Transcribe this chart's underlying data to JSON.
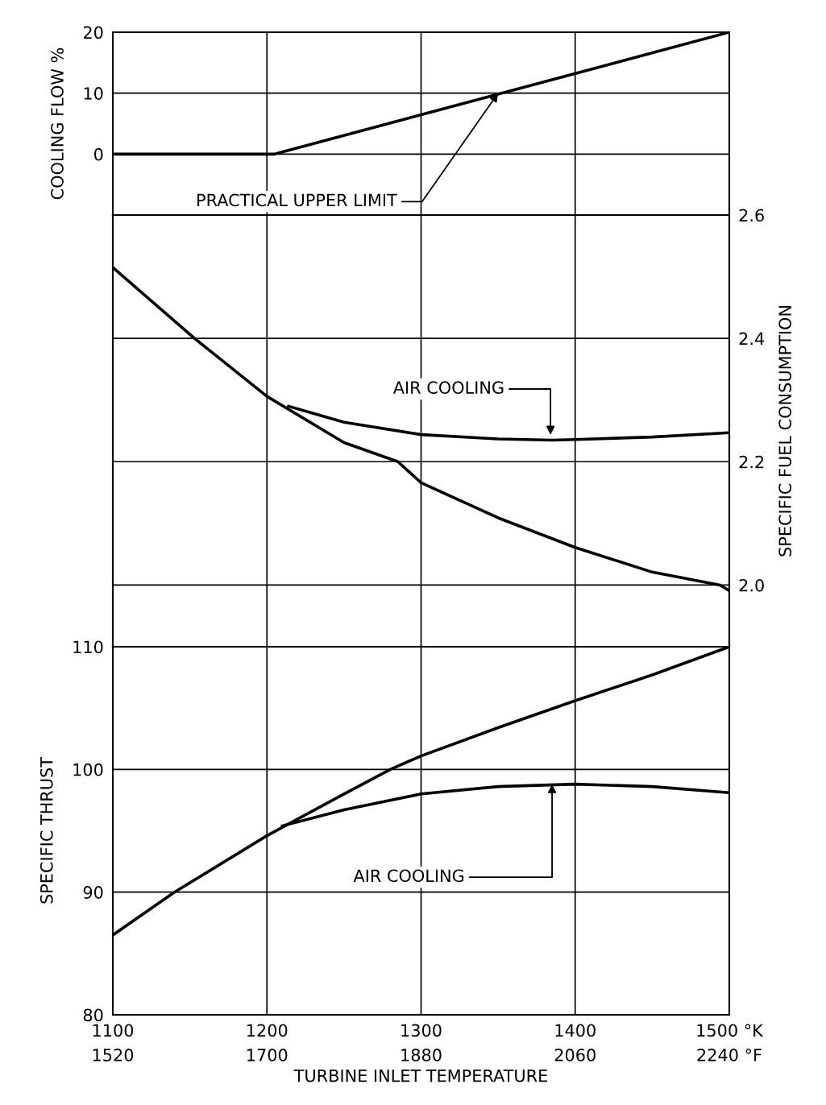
{
  "chart_data": [
    {
      "type": "line",
      "ylabel": "COOLING FLOW %",
      "xlim": [
        1100,
        1500
      ],
      "xticks": [
        1100,
        1200,
        1300,
        1400,
        1500
      ],
      "ylim": [
        -10,
        20
      ],
      "yticks": [
        0,
        10,
        20
      ],
      "grid": true,
      "tick_labels": "y",
      "line_style": "solid",
      "series": [
        {
          "color": "#000000",
          "x": [
            1100,
            1205,
            1500
          ],
          "values": [
            0,
            0,
            20
          ]
        }
      ],
      "annotations": [
        {
          "text": "PRACTICAL UPPER LIMIT",
          "x": 1350,
          "y": 10
        }
      ]
    },
    {
      "type": "line",
      "y2label": "SPECIFIC FUEL CONSUMPTION",
      "xlim": [
        1100,
        1500
      ],
      "xticks": [
        1100,
        1200,
        1300,
        1400,
        1500
      ],
      "y2lim": [
        1.9,
        2.6
      ],
      "y2ticks": [
        {
          "value": 2.0,
          "label": "2.0"
        },
        2.2,
        2.4,
        2.6
      ],
      "grid": true,
      "tick_labels": "y",
      "line_style": "solid",
      "series": [
        {
          "color": "#000000",
          "axis": "y2",
          "x": [
            1100,
            1153,
            1200,
            1250,
            1285,
            1300,
            1350,
            1400,
            1450,
            1494,
            1500
          ],
          "values": [
            2.515,
            2.4,
            2.306,
            2.231,
            2.2,
            2.166,
            2.109,
            2.061,
            2.021,
            2.0,
            1.991
          ]
        },
        {
          "color": "#000000",
          "axis": "y2",
          "x": [
            1214,
            1250,
            1300,
            1350,
            1385,
            1400,
            1450,
            1500
          ],
          "values": [
            2.29,
            2.264,
            2.244,
            2.237,
            2.235,
            2.236,
            2.24,
            2.247
          ]
        }
      ],
      "annotations": [
        "AIR COOLING"
      ]
    },
    {
      "type": "line",
      "ylabel": "SPECIFIC THRUST",
      "xlabel": "TURBINE INLET TEMPERATURE",
      "xlim": [
        1100,
        1500
      ],
      "xticks": [
        1100,
        1200,
        1300,
        1400,
        {
          "value": 1500,
          "label": "1500 °K"
        }
      ],
      "x2lim": [
        1520,
        2240
      ],
      "x2ticks": [
        1520,
        1700,
        1880,
        2060,
        {
          "value": 2240,
          "label": "2240 °F"
        }
      ],
      "ylim": [
        80,
        110
      ],
      "yticks": [
        80,
        90,
        100,
        110
      ],
      "grid": true,
      "line_style": "solid",
      "series": [
        {
          "color": "#000000",
          "x": [
            1100,
            1140,
            1200,
            1250,
            1280,
            1300,
            1350,
            1400,
            1450,
            1500
          ],
          "values": [
            86.5,
            90,
            94.6,
            98.0,
            100,
            101.1,
            103.4,
            105.6,
            107.7,
            110
          ]
        },
        {
          "color": "#000000",
          "x": [
            1210,
            1250,
            1300,
            1350,
            1400,
            1450,
            1500
          ],
          "values": [
            95.4,
            96.7,
            98.0,
            98.6,
            98.8,
            98.6,
            98.1
          ]
        }
      ],
      "annotations": [
        {
          "text": "AIR COOLING",
          "x": 1385,
          "y": 98.8
        }
      ]
    }
  ]
}
